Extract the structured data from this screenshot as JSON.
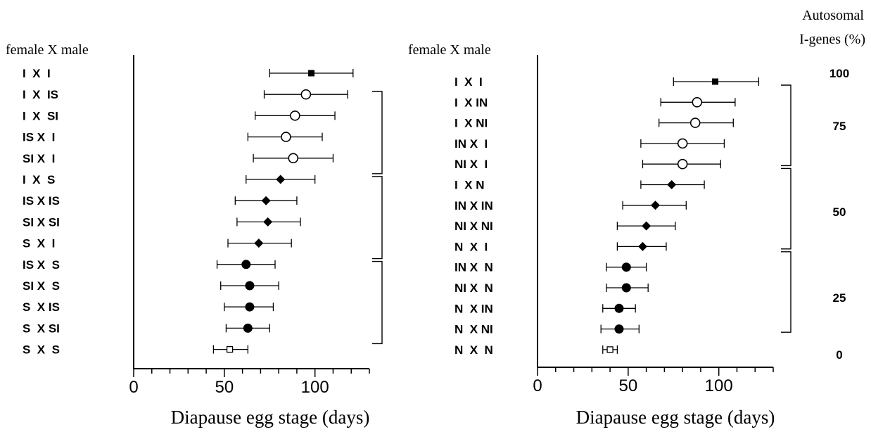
{
  "chart_data": [
    {
      "type": "scatter",
      "variant": "dot-plot-with-error-bars",
      "category_header": "female X male",
      "xlabel": "Diapause egg stage (days)",
      "ylabel": "",
      "xlim": [
        0,
        130
      ],
      "x_ticks": [
        0,
        50,
        100
      ],
      "x_tick_labels": [
        "0",
        "50",
        "100"
      ],
      "grid": false,
      "categories": [
        "I  X  I",
        "I  X  IS",
        "I  X  SI",
        "IS X  I",
        "SI X  I",
        "I  X  S",
        "IS X IS",
        "SI X SI",
        "S  X  I",
        "IS X  S",
        "SI X  S",
        "S  X IS",
        "S  X SI",
        "S  X  S"
      ],
      "points": [
        {
          "mean": 98,
          "low": 75,
          "high": 121,
          "marker": "filled-square"
        },
        {
          "mean": 95,
          "low": 72,
          "high": 118,
          "marker": "open-circle"
        },
        {
          "mean": 89,
          "low": 67,
          "high": 111,
          "marker": "open-circle"
        },
        {
          "mean": 84,
          "low": 63,
          "high": 104,
          "marker": "open-circle"
        },
        {
          "mean": 88,
          "low": 66,
          "high": 110,
          "marker": "open-circle"
        },
        {
          "mean": 81,
          "low": 62,
          "high": 100,
          "marker": "filled-diamond"
        },
        {
          "mean": 73,
          "low": 56,
          "high": 90,
          "marker": "filled-diamond"
        },
        {
          "mean": 74,
          "low": 57,
          "high": 92,
          "marker": "filled-diamond"
        },
        {
          "mean": 69,
          "low": 52,
          "high": 87,
          "marker": "filled-diamond"
        },
        {
          "mean": 62,
          "low": 46,
          "high": 78,
          "marker": "filled-circle"
        },
        {
          "mean": 64,
          "low": 48,
          "high": 80,
          "marker": "filled-circle"
        },
        {
          "mean": 64,
          "low": 50,
          "high": 77,
          "marker": "filled-circle"
        },
        {
          "mean": 63,
          "low": 51,
          "high": 75,
          "marker": "filled-circle"
        },
        {
          "mean": 53,
          "low": 44,
          "high": 63,
          "marker": "open-square"
        }
      ],
      "brackets": [
        [
          1,
          4
        ],
        [
          5,
          8
        ],
        [
          9,
          12
        ]
      ]
    },
    {
      "type": "scatter",
      "variant": "dot-plot-with-error-bars",
      "category_header": "female X male",
      "xlabel": "Diapause egg stage (days)",
      "ylabel": "",
      "xlim": [
        0,
        130
      ],
      "x_ticks": [
        0,
        50,
        100
      ],
      "x_tick_labels": [
        "0",
        "50",
        "100"
      ],
      "grid": false,
      "categories": [
        "I  X  I",
        "I  X IN",
        "I  X NI",
        "IN X  I",
        "NI X  I",
        "I  X N",
        "IN X IN",
        "NI X NI",
        "N  X  I",
        "IN X  N",
        "NI X  N",
        "N  X IN",
        "N  X NI",
        "N  X  N"
      ],
      "points": [
        {
          "mean": 98,
          "low": 75,
          "high": 122,
          "marker": "filled-square"
        },
        {
          "mean": 88,
          "low": 68,
          "high": 109,
          "marker": "open-circle"
        },
        {
          "mean": 87,
          "low": 67,
          "high": 108,
          "marker": "open-circle"
        },
        {
          "mean": 80,
          "low": 57,
          "high": 103,
          "marker": "open-circle"
        },
        {
          "mean": 80,
          "low": 58,
          "high": 101,
          "marker": "open-circle"
        },
        {
          "mean": 74,
          "low": 57,
          "high": 92,
          "marker": "filled-diamond"
        },
        {
          "mean": 65,
          "low": 47,
          "high": 82,
          "marker": "filled-diamond"
        },
        {
          "mean": 60,
          "low": 44,
          "high": 76,
          "marker": "filled-diamond"
        },
        {
          "mean": 58,
          "low": 44,
          "high": 71,
          "marker": "filled-diamond"
        },
        {
          "mean": 49,
          "low": 38,
          "high": 60,
          "marker": "filled-circle"
        },
        {
          "mean": 49,
          "low": 38,
          "high": 61,
          "marker": "filled-circle"
        },
        {
          "mean": 45,
          "low": 36,
          "high": 54,
          "marker": "filled-circle"
        },
        {
          "mean": 45,
          "low": 35,
          "high": 56,
          "marker": "filled-circle"
        },
        {
          "mean": 40,
          "low": 36,
          "high": 44,
          "marker": "open-square"
        }
      ],
      "brackets": [
        [
          1,
          4
        ],
        [
          5,
          8
        ],
        [
          9,
          12
        ]
      ]
    }
  ],
  "right_axis": {
    "title_line1": "Autosomal",
    "title_line2": "I-genes (%)",
    "labels": [
      "100",
      "75",
      "50",
      "25",
      "0"
    ]
  }
}
